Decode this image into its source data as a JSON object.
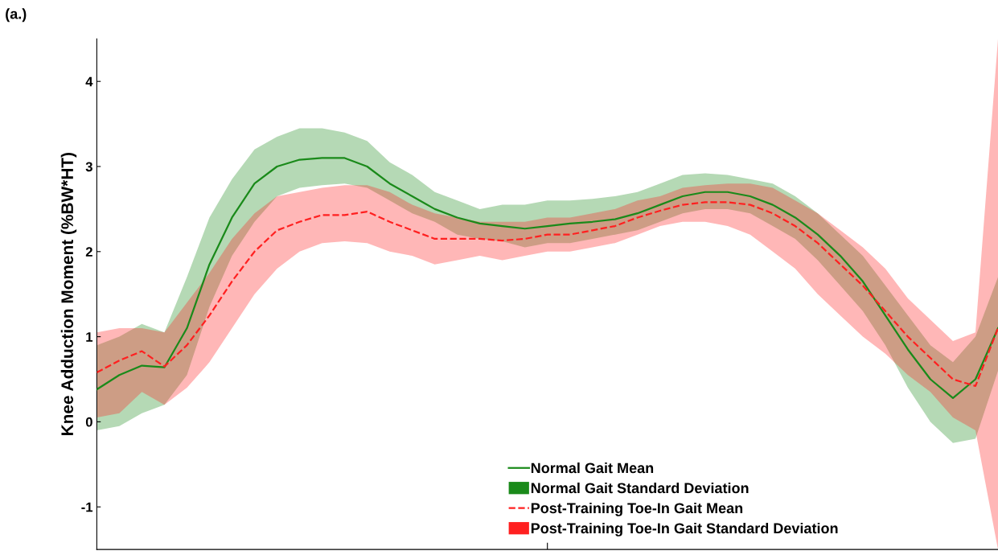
{
  "chart_data": {
    "type": "line",
    "title": "(a.)",
    "ylabel": "Knee Adduction Moment (%BW*HT)",
    "annotations": [
      "Normal Gait Standard Deviation",
      "Post-Training Toe-In Gait Standard Deviation"
    ],
    "categories": [
      null,
      null,
      null,
      null,
      null,
      null,
      null,
      null,
      null,
      null,
      null,
      null,
      null,
      null,
      null,
      null,
      null,
      null,
      null,
      null,
      null,
      null,
      null,
      null,
      null,
      null,
      null,
      null,
      null,
      null,
      null,
      null,
      null,
      null,
      null,
      null,
      null,
      null,
      null,
      null,
      null
    ],
    "series": [
      {
        "name": "Normal Gait Mean",
        "color": "#1a8a1a",
        "line_style": "solid",
        "values": [
          0.38,
          0.55,
          0.66,
          0.64,
          1.1,
          1.85,
          2.4,
          2.8,
          3.0,
          3.08,
          3.1,
          3.1,
          3.0,
          2.8,
          2.65,
          2.5,
          2.4,
          2.33,
          2.3,
          2.27,
          2.3,
          2.33,
          2.35,
          2.38,
          2.45,
          2.55,
          2.65,
          2.7,
          2.7,
          2.65,
          2.55,
          2.4,
          2.2,
          1.95,
          1.65,
          1.25,
          0.85,
          0.5,
          0.28,
          0.5,
          1.1
        ],
        "lower": [
          -0.1,
          -0.05,
          0.1,
          0.2,
          0.55,
          1.35,
          1.95,
          2.35,
          2.65,
          2.75,
          2.78,
          2.8,
          2.75,
          2.6,
          2.45,
          2.35,
          2.2,
          2.15,
          2.12,
          2.05,
          2.1,
          2.1,
          2.15,
          2.2,
          2.25,
          2.35,
          2.45,
          2.5,
          2.5,
          2.45,
          2.3,
          2.15,
          1.9,
          1.6,
          1.3,
          0.9,
          0.4,
          0.0,
          -0.25,
          -0.2,
          0.6
        ],
        "upper": [
          0.9,
          1.0,
          1.15,
          1.05,
          1.7,
          2.4,
          2.85,
          3.2,
          3.35,
          3.45,
          3.45,
          3.4,
          3.3,
          3.05,
          2.9,
          2.7,
          2.6,
          2.5,
          2.55,
          2.55,
          2.6,
          2.6,
          2.62,
          2.65,
          2.7,
          2.8,
          2.9,
          2.92,
          2.9,
          2.85,
          2.8,
          2.65,
          2.45,
          2.2,
          1.95,
          1.6,
          1.25,
          0.9,
          0.7,
          1.0,
          1.7
        ]
      },
      {
        "name": "Post-Training Toe-In Gait Mean",
        "color": "#ff2020",
        "line_style": "dashed",
        "values": [
          0.58,
          0.72,
          0.83,
          0.65,
          0.9,
          1.25,
          1.65,
          2.0,
          2.25,
          2.35,
          2.43,
          2.43,
          2.47,
          2.35,
          2.25,
          2.15,
          2.15,
          2.15,
          2.13,
          2.15,
          2.2,
          2.2,
          2.25,
          2.3,
          2.4,
          2.48,
          2.55,
          2.58,
          2.58,
          2.55,
          2.45,
          2.3,
          2.1,
          1.85,
          1.6,
          1.3,
          1.0,
          0.75,
          0.5,
          0.42,
          1.1
        ],
        "lower": [
          0.05,
          0.1,
          0.35,
          0.2,
          0.4,
          0.7,
          1.1,
          1.5,
          1.8,
          2.0,
          2.1,
          2.12,
          2.1,
          2.0,
          1.95,
          1.85,
          1.9,
          1.95,
          1.9,
          1.95,
          2.0,
          2.0,
          2.05,
          2.1,
          2.2,
          2.3,
          2.35,
          2.35,
          2.3,
          2.2,
          2.0,
          1.8,
          1.5,
          1.25,
          1.0,
          0.8,
          0.55,
          0.35,
          0.05,
          -0.1,
          -1.5
        ],
        "upper": [
          1.05,
          1.1,
          1.1,
          1.05,
          1.4,
          1.75,
          2.15,
          2.45,
          2.65,
          2.7,
          2.75,
          2.78,
          2.78,
          2.7,
          2.55,
          2.45,
          2.4,
          2.35,
          2.35,
          2.35,
          2.4,
          2.4,
          2.45,
          2.5,
          2.6,
          2.65,
          2.75,
          2.78,
          2.8,
          2.8,
          2.75,
          2.6,
          2.45,
          2.25,
          2.05,
          1.8,
          1.45,
          1.2,
          0.95,
          1.05,
          4.5
        ]
      }
    ],
    "ylim": [
      -1.5,
      4.5
    ],
    "yticks": [
      -1,
      0,
      1,
      2,
      3,
      4
    ],
    "tick_labels": "y",
    "grid": false,
    "legend": "bottom",
    "marker": "none"
  }
}
